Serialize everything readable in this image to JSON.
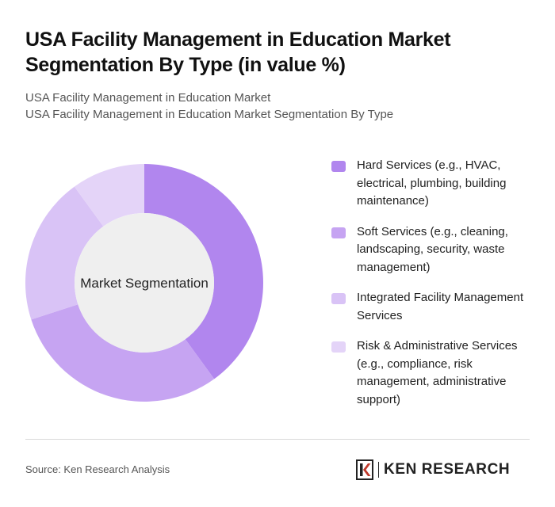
{
  "header": {
    "title": "USA Facility Management in Education Market Segmentation By Type (in value %)",
    "subtitle_line1": "USA Facility Management in Education Market",
    "subtitle_line2": "USA Facility Management in Education Market Segmentation By Type"
  },
  "chart_data": {
    "type": "donut",
    "center_label": "Market Segmentation",
    "categories": [
      "Hard Services (e.g., HVAC, electrical, plumbing, building maintenance)",
      "Soft Services (e.g., cleaning, landscaping, security, waste management)",
      "Integrated Facility Management Services",
      "Risk & Administrative Services (e.g., compliance, risk management, administrative support)"
    ],
    "values": [
      40,
      30,
      20,
      10
    ],
    "colors": [
      "#b186ee",
      "#c6a4f2",
      "#d9c3f6",
      "#e4d4f8"
    ]
  },
  "footer": {
    "source": "Source: Ken Research Analysis",
    "brand": "KEN RESEARCH",
    "logo_icon": "ken-research-logo-icon"
  }
}
